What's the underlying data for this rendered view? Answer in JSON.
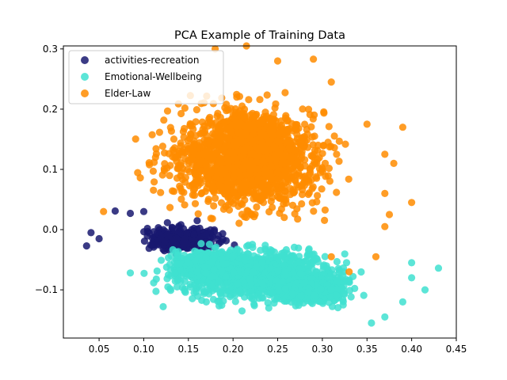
{
  "chart_data": {
    "type": "scatter",
    "title": "PCA Example of Training Data",
    "xlabel": "",
    "ylabel": "",
    "xlim": [
      0.01,
      0.45
    ],
    "ylim": [
      -0.18,
      0.305
    ],
    "xticks": [
      0.05,
      0.1,
      0.15,
      0.2,
      0.25,
      0.3,
      0.35,
      0.4,
      0.45
    ],
    "xtick_labels": [
      "0.05",
      "0.10",
      "0.15",
      "0.20",
      "0.25",
      "0.30",
      "0.35",
      "0.40",
      "0.45"
    ],
    "yticks": [
      -0.1,
      0.0,
      0.1,
      0.2,
      0.3
    ],
    "ytick_labels": [
      "−0.1",
      "0.0",
      "0.1",
      "0.2",
      "0.3"
    ],
    "grid": false,
    "legend_position": "top-left",
    "series": [
      {
        "name": "activities-recreation",
        "color": "#191970",
        "clusters": [
          {
            "x": [
              0.07,
              0.22
            ],
            "y": [
              -0.05,
              0.02
            ],
            "n": 260
          },
          {
            "x": [
              0.09,
              0.17
            ],
            "y": [
              -0.04,
              0.0
            ],
            "n": 120
          }
        ],
        "points": [
          [
            0.036,
            -0.027
          ],
          [
            0.041,
            -0.005
          ],
          [
            0.05,
            -0.015
          ],
          [
            0.068,
            0.031
          ],
          [
            0.085,
            0.027
          ],
          [
            0.1,
            0.03
          ]
        ]
      },
      {
        "name": "Emotional-Wellbeing",
        "color": "#40E0D0",
        "clusters": [
          {
            "x": [
              0.07,
              0.38
            ],
            "y": [
              -0.14,
              -0.01
            ],
            "n": 1100
          },
          {
            "x": [
              0.22,
              0.36
            ],
            "y": [
              -0.14,
              -0.06
            ],
            "n": 450
          },
          {
            "x": [
              0.1,
              0.25
            ],
            "y": [
              -0.1,
              -0.02
            ],
            "n": 350
          }
        ],
        "points": [
          [
            0.43,
            -0.064
          ],
          [
            0.415,
            -0.1
          ],
          [
            0.4,
            -0.055
          ],
          [
            0.4,
            -0.08
          ],
          [
            0.39,
            -0.12
          ],
          [
            0.37,
            -0.145
          ],
          [
            0.355,
            -0.155
          ],
          [
            0.085,
            -0.072
          ],
          [
            0.24,
            -0.13
          ],
          [
            0.21,
            -0.135
          ],
          [
            0.17,
            -0.12
          ]
        ]
      },
      {
        "name": "Elder-Law",
        "color": "#FF8C00",
        "clusters": [
          {
            "x": [
              0.06,
              0.37
            ],
            "y": [
              -0.02,
              0.25
            ],
            "n": 1250
          },
          {
            "x": [
              0.14,
              0.3
            ],
            "y": [
              0.03,
              0.24
            ],
            "n": 650
          },
          {
            "x": [
              0.18,
              0.27
            ],
            "y": [
              0.07,
              0.2
            ],
            "n": 250
          }
        ],
        "points": [
          [
            0.055,
            0.03
          ],
          [
            0.18,
            0.3
          ],
          [
            0.215,
            0.305
          ],
          [
            0.25,
            0.28
          ],
          [
            0.29,
            0.283
          ],
          [
            0.31,
            0.245
          ],
          [
            0.35,
            0.175
          ],
          [
            0.37,
            0.125
          ],
          [
            0.38,
            0.11
          ],
          [
            0.39,
            0.17
          ],
          [
            0.37,
            0.06
          ],
          [
            0.375,
            0.025
          ],
          [
            0.4,
            0.045
          ],
          [
            0.37,
            0.005
          ],
          [
            0.33,
            -0.07
          ],
          [
            0.36,
            -0.045
          ],
          [
            0.31,
            -0.045
          ]
        ]
      }
    ]
  }
}
